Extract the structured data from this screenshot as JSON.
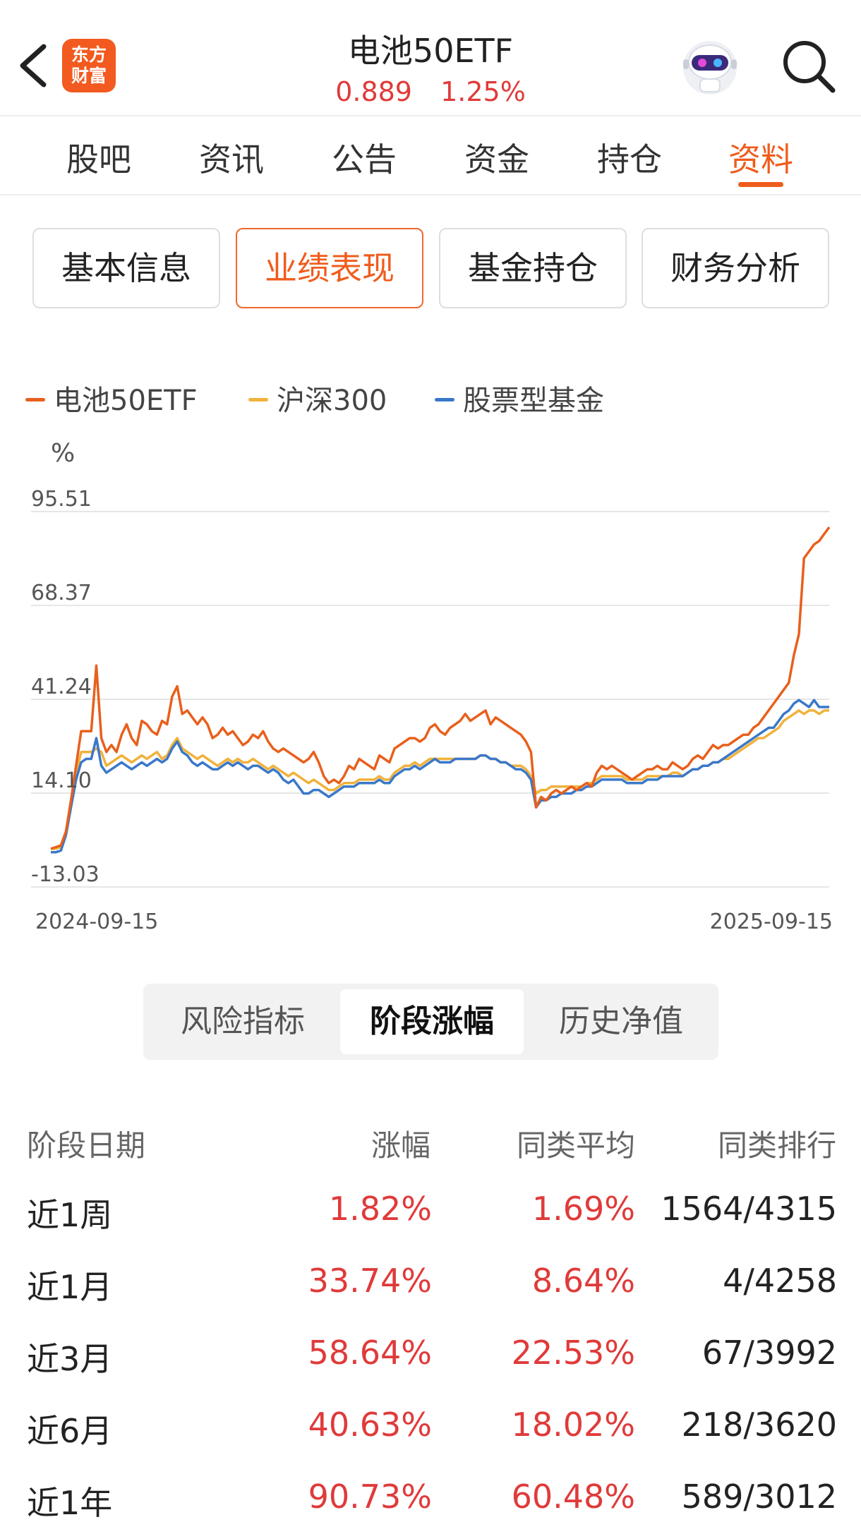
{
  "header": {
    "title": "电池50ETF",
    "price": "0.889",
    "change_pct": "1.25%",
    "logo_text_line1": "东方",
    "logo_text_line2": "财富"
  },
  "tabs": [
    {
      "label": "股吧"
    },
    {
      "label": "资讯"
    },
    {
      "label": "公告"
    },
    {
      "label": "资金"
    },
    {
      "label": "持仓"
    },
    {
      "label": "资料",
      "active": true
    }
  ],
  "segments": [
    {
      "label": "基本信息"
    },
    {
      "label": "业绩表现",
      "active": true
    },
    {
      "label": "基金持仓"
    },
    {
      "label": "财务分析"
    }
  ],
  "colors": {
    "accent": "#ef5c1c",
    "up_red": "#e03a3a",
    "series_fund": "#e8601c",
    "series_hs300": "#f0b23c",
    "series_stock_fund": "#3a78c9"
  },
  "chart_data": {
    "type": "line",
    "ylabel": "%",
    "yticks": [
      "95.51",
      "68.37",
      "41.24",
      "14.10",
      "-13.03"
    ],
    "ylim": [
      -13.03,
      95.51
    ],
    "x_start": "2024-09-15",
    "x_end": "2025-09-15",
    "grid": true,
    "legend_position": "top-left",
    "series": [
      {
        "name": "电池50ETF",
        "color": "#e8601c",
        "values": [
          -2,
          -1.5,
          -1,
          3,
          12,
          22,
          32,
          32,
          32,
          51,
          30,
          26,
          28,
          26,
          31,
          34,
          30,
          28,
          35,
          34,
          32,
          31,
          35,
          34,
          42,
          45,
          37,
          38,
          36,
          34,
          36,
          34,
          30,
          31,
          33,
          31,
          32,
          30,
          28,
          29,
          31,
          30,
          32,
          29,
          27,
          26,
          27,
          26,
          25,
          24,
          23,
          24,
          26,
          23,
          19,
          17,
          18,
          17,
          19,
          22,
          21,
          24,
          23,
          22,
          21,
          25,
          24,
          23,
          27,
          28,
          29,
          30,
          30,
          29,
          30,
          33,
          34,
          32,
          31,
          33,
          34,
          35,
          37,
          35,
          36,
          37,
          38,
          34,
          36,
          35,
          34,
          33,
          32,
          31,
          29,
          26,
          10,
          13,
          12,
          14,
          15,
          14,
          15,
          16,
          15,
          16,
          17,
          16,
          20,
          22,
          21,
          22,
          21,
          20,
          19,
          18,
          19,
          20,
          21,
          21,
          22,
          21,
          21,
          23,
          22,
          21,
          22,
          24,
          25,
          24,
          26,
          28,
          27,
          28,
          28,
          29,
          30,
          31,
          31,
          33,
          34,
          36,
          38,
          40,
          42,
          44,
          46,
          54,
          60,
          82,
          84,
          86,
          87,
          89,
          91
        ]
      },
      {
        "name": "沪深300",
        "color": "#f0b23c",
        "values": [
          -2,
          -2,
          -1.5,
          3,
          12,
          20,
          26,
          26,
          26,
          27,
          26,
          22,
          23,
          24,
          25,
          24,
          23,
          24,
          25,
          24,
          25,
          26,
          24,
          25,
          28,
          30,
          27,
          26,
          25,
          24,
          25,
          24,
          23,
          22,
          23,
          24,
          23,
          24,
          23,
          23,
          24,
          23,
          22,
          21,
          22,
          21,
          20,
          19,
          20,
          19,
          18,
          17,
          18,
          17,
          16,
          15,
          15,
          16,
          17,
          17,
          17,
          18,
          18,
          18,
          18,
          19,
          18,
          18,
          20,
          21,
          22,
          22,
          23,
          22,
          23,
          24,
          24,
          24,
          24,
          24,
          24,
          24,
          24,
          24,
          24,
          25,
          25,
          24,
          24,
          23,
          23,
          22,
          22,
          22,
          21,
          19,
          14,
          15,
          15,
          16,
          16,
          16,
          16,
          16,
          16,
          16,
          17,
          17,
          18,
          19,
          19,
          19,
          19,
          19,
          18,
          18,
          18,
          18,
          19,
          19,
          19,
          19,
          19,
          20,
          20,
          19,
          20,
          21,
          21,
          22,
          22,
          23,
          23,
          24,
          24,
          25,
          26,
          27,
          28,
          29,
          30,
          30,
          31,
          32,
          33,
          35,
          36,
          37,
          38,
          37,
          38,
          38,
          37,
          38,
          38
        ]
      },
      {
        "name": "股票型基金",
        "color": "#3a78c9",
        "values": [
          -3,
          -3,
          -2.5,
          2,
          10,
          18,
          23,
          24,
          24,
          30,
          22,
          20,
          21,
          22,
          23,
          22,
          21,
          22,
          23,
          22,
          23,
          24,
          23,
          24,
          27,
          29,
          26,
          25,
          23,
          22,
          23,
          22,
          21,
          21,
          22,
          23,
          22,
          23,
          22,
          21,
          22,
          22,
          21,
          20,
          21,
          20,
          18,
          17,
          18,
          16,
          14,
          14,
          15,
          15,
          14,
          13,
          14,
          15,
          16,
          16,
          16,
          17,
          17,
          17,
          17,
          18,
          17,
          17,
          19,
          20,
          21,
          21,
          22,
          21,
          22,
          23,
          24,
          23,
          23,
          23,
          24,
          24,
          24,
          24,
          24,
          25,
          25,
          24,
          24,
          23,
          23,
          22,
          21,
          21,
          20,
          18,
          10,
          12,
          12,
          13,
          13,
          14,
          14,
          14,
          15,
          15,
          16,
          16,
          17,
          18,
          18,
          18,
          18,
          18,
          17,
          17,
          17,
          17,
          18,
          18,
          18,
          19,
          19,
          19,
          19,
          19,
          20,
          21,
          21,
          22,
          22,
          23,
          23,
          24,
          25,
          26,
          27,
          28,
          29,
          30,
          31,
          32,
          33,
          33,
          35,
          37,
          38,
          40,
          41,
          40,
          39,
          41,
          39,
          39,
          39
        ]
      }
    ]
  },
  "subtabs": [
    {
      "label": "风险指标"
    },
    {
      "label": "阶段涨幅",
      "active": true
    },
    {
      "label": "历史净值"
    }
  ],
  "table": {
    "headers": [
      "阶段日期",
      "涨幅",
      "同类平均",
      "同类排行"
    ],
    "rows": [
      {
        "period": "近1周",
        "change": "1.82%",
        "avg": "1.69%",
        "rank": "1564/4315"
      },
      {
        "period": "近1月",
        "change": "33.74%",
        "avg": "8.64%",
        "rank": "4/4258"
      },
      {
        "period": "近3月",
        "change": "58.64%",
        "avg": "22.53%",
        "rank": "67/3992"
      },
      {
        "period": "近6月",
        "change": "40.63%",
        "avg": "18.02%",
        "rank": "218/3620"
      },
      {
        "period": "近1年",
        "change": "90.73%",
        "avg": "60.48%",
        "rank": "589/3012"
      }
    ]
  }
}
